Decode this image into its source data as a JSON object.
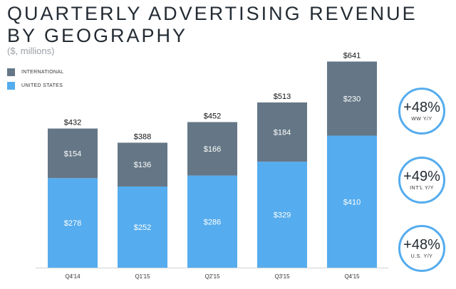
{
  "title_line1": "QUARTERLY ADVERTISING REVENUE",
  "title_line2": "BY GEOGRAPHY",
  "subtitle": "($, millions)",
  "colors": {
    "international": "#657786",
    "united_states": "#55acee",
    "bubble_border": "#55acee"
  },
  "chart_data": {
    "type": "bar",
    "stacked": true,
    "categories": [
      "Q4'14",
      "Q1'15",
      "Q2'15",
      "Q3'15",
      "Q4'15"
    ],
    "series": [
      {
        "name": "UNITED STATES",
        "values": [
          278,
          252,
          286,
          329,
          410
        ]
      },
      {
        "name": "INTERNATIONAL",
        "values": [
          154,
          136,
          166,
          184,
          230
        ]
      }
    ],
    "totals": [
      432,
      388,
      452,
      513,
      641
    ],
    "total_labels": [
      "$432",
      "$388",
      "$452",
      "$513",
      "$641"
    ],
    "us_labels": [
      "$278",
      "$252",
      "$286",
      "$329",
      "$410"
    ],
    "intl_labels": [
      "$154",
      "$136",
      "$166",
      "$184",
      "$230"
    ],
    "legend": [
      "INTERNATIONAL",
      "UNITED STATES"
    ],
    "legend_position": "top-left",
    "grid": false
  },
  "growth": [
    {
      "pct": "+48%",
      "label": "WW Y/Y"
    },
    {
      "pct": "+49%",
      "label": "INT'L Y/Y"
    },
    {
      "pct": "+48%",
      "label": "U.S. Y/Y"
    }
  ]
}
